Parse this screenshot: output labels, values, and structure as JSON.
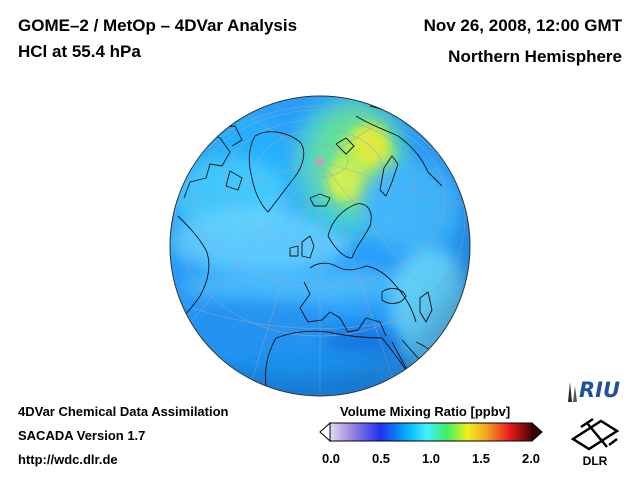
{
  "header": {
    "title": "GOME–2 / MetOp – 4DVar Analysis",
    "subtitle": "HCl at 55.4 hPa",
    "datetime": "Nov 26, 2008, 12:00 GMT",
    "region": "Northern Hemisphere"
  },
  "footer": {
    "line1": "4DVar Chemical Data Assimilation",
    "line2": "SACADA Version 1.7",
    "line3": "http://wdc.dlr.de"
  },
  "colorbar": {
    "title": "Volume Mixing Ratio [ppbv]",
    "range": [
      0.0,
      2.0
    ],
    "ticks": [
      "0.0",
      "0.5",
      "1.0",
      "1.5",
      "2.0"
    ],
    "stops": [
      "#e8d8f0",
      "#9080e0",
      "#2030f0",
      "#00b0ff",
      "#40f0ff",
      "#40f060",
      "#f0f020",
      "#f0a020",
      "#f02020",
      "#500000"
    ]
  },
  "map": {
    "projection": "orthographic",
    "hemisphere": "Northern Hemisphere",
    "ocean_color": "#28a0ff",
    "features": [
      "coastlines",
      "graticule",
      "pole-marker"
    ]
  },
  "logos": {
    "riu": "RIU",
    "dlr": "DLR"
  }
}
